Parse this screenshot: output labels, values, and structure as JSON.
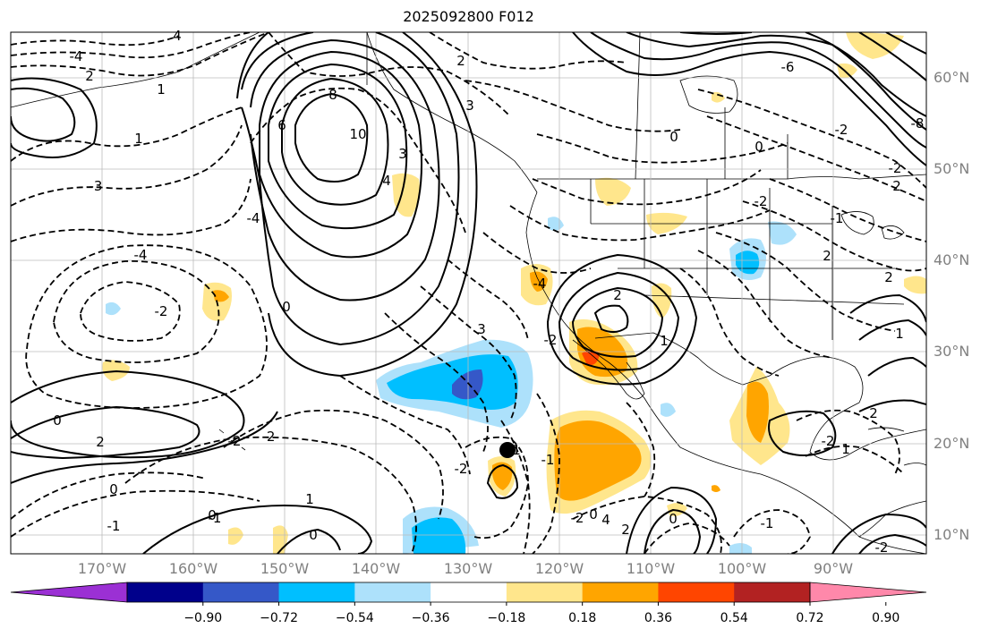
{
  "title": "2025092800 F012",
  "lat_labels": [
    "60°N",
    "50°N",
    "40°N",
    "30°N",
    "20°N",
    "10°N"
  ],
  "lon_labels": [
    "170°W",
    "160°W",
    "150°W",
    "140°W",
    "130°W",
    "120°W",
    "110°W",
    "100°W",
    "90°W"
  ],
  "contour_labels": [
    "-4",
    "2",
    "4",
    "2",
    "1",
    "1",
    "8",
    "10",
    "6",
    "4",
    "3",
    "-3",
    "-4",
    "-2",
    "0",
    "-2",
    "2",
    "0",
    "-2",
    "0",
    "-1",
    "-2",
    "-4",
    "3",
    "-4",
    "2",
    "-1",
    "3",
    "1",
    "0",
    "0",
    "2",
    "-2",
    "0",
    "-2",
    "1",
    "4",
    "-6",
    "-8",
    "0",
    "-2",
    "2",
    "0",
    "-2",
    "-2",
    "2",
    "-1",
    "2",
    "1",
    "2",
    "-2",
    "1",
    "-1",
    "-2",
    "0",
    "-1",
    "1"
  ],
  "colorbar": {
    "ticks": [
      "−0.90",
      "−0.72",
      "−0.54",
      "−0.36",
      "−0.18",
      "0.18",
      "0.36",
      "0.54",
      "0.72",
      "0.90"
    ],
    "colors": [
      "#9b30d4",
      "#00008b",
      "#3558c8",
      "#00bfff",
      "#ade1fb",
      "#ffffff",
      "#ffe68c",
      "#ffa500",
      "#ff4500",
      "#b22222",
      "#ff88aa"
    ]
  }
}
